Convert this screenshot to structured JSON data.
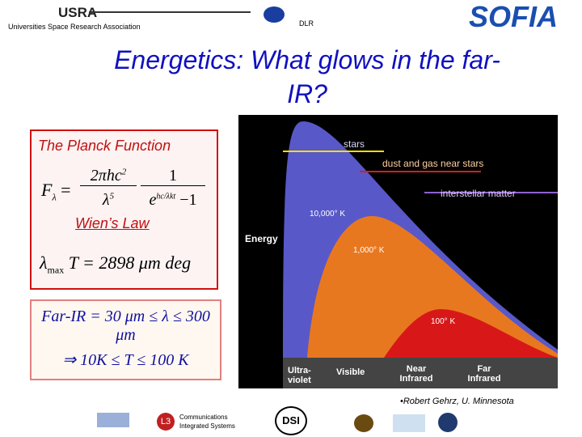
{
  "header": {
    "org_logo": "USRA",
    "org_name": "Universities Space Research Association",
    "partner": "DLR",
    "logo": "SOFIA"
  },
  "title": [
    "Energetics:  What glows in the far-",
    "IR?"
  ],
  "planck_box": {
    "heading": "The Planck Function",
    "lhs": "F",
    "lhs_sub": "λ",
    "equals": "=",
    "num1": "2πhc",
    "num1_sup": "2",
    "den1": "λ",
    "den1_sup": "5",
    "num2": "1",
    "den2": "e",
    "den2_sup": "hc/λkt",
    "den2_tail": "−1",
    "law": "Wien’s Law",
    "wien_lambda": "λ",
    "wien_sub": "max",
    "wien_rest": "T = 2898 μm deg"
  },
  "far_ir_box": {
    "lines": [
      "Far-IR = 30 μm ≤ λ ≤ 300",
      "μm",
      "⇒ 10K ≤ T ≤ 100 K"
    ]
  },
  "figure": {
    "labels": {
      "stars": "stars",
      "dust": "dust and gas near stars",
      "ism": "interstellar matter",
      "t1": "10,000° K",
      "t2": "1,000° K",
      "t3": "100° K",
      "y_axis": "Energy"
    },
    "bands": [
      "Ultra-violet",
      "Visible",
      "Near Infrared",
      "Far Infrared"
    ]
  },
  "credit": "•Robert Gehrz, U. Minnesota",
  "footer": {
    "l3": "L3",
    "comm": [
      "Communications",
      "Integrated Systems"
    ],
    "dsi": "DSI"
  }
}
